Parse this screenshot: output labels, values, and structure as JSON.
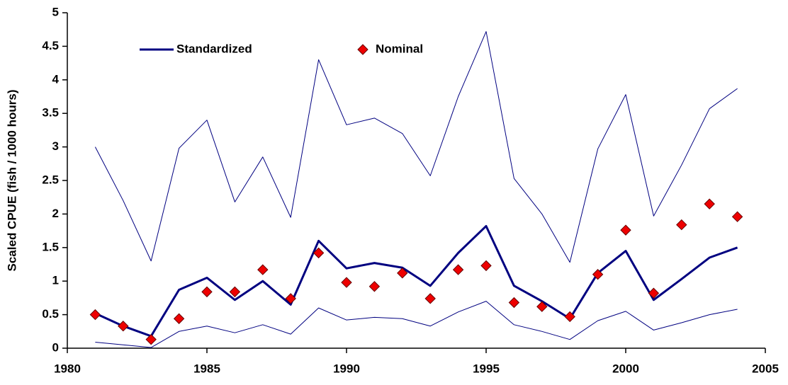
{
  "chart_data": {
    "type": "line",
    "y_label": "Scaled CPUE (fish / 1000 hours)",
    "x": [
      1981,
      1982,
      1983,
      1984,
      1985,
      1986,
      1987,
      1988,
      1989,
      1990,
      1991,
      1992,
      1993,
      1994,
      1995,
      1996,
      1997,
      1998,
      1999,
      2000,
      2001,
      2002,
      2003,
      2004
    ],
    "series": [
      {
        "name": "Standardized",
        "color": "#000080",
        "style": "line",
        "line_width": 3,
        "values": [
          0.52,
          0.33,
          0.18,
          0.87,
          1.05,
          0.72,
          1.0,
          0.65,
          1.6,
          1.19,
          1.27,
          1.2,
          0.93,
          1.42,
          1.82,
          0.93,
          0.7,
          0.44,
          1.12,
          1.45,
          0.72,
          1.03,
          1.35,
          1.5
        ]
      },
      {
        "color": "#000080",
        "style": "line",
        "line_width": 1,
        "values": [
          3.0,
          2.2,
          1.3,
          2.98,
          3.4,
          2.18,
          2.85,
          1.95,
          4.3,
          3.33,
          3.43,
          3.2,
          2.57,
          3.75,
          4.72,
          2.53,
          2.0,
          1.28,
          2.97,
          3.78,
          1.97,
          2.73,
          3.57,
          3.87
        ]
      },
      {
        "color": "#000080",
        "style": "line",
        "line_width": 1,
        "values": [
          0.09,
          0.05,
          0.01,
          0.25,
          0.33,
          0.23,
          0.35,
          0.21,
          0.6,
          0.42,
          0.46,
          0.44,
          0.33,
          0.54,
          0.7,
          0.35,
          0.25,
          0.13,
          0.41,
          0.55,
          0.27,
          0.38,
          0.5,
          0.58
        ]
      },
      {
        "name": "Nominal",
        "color": "#ee0000",
        "style": "diamond",
        "values": [
          0.5,
          0.33,
          0.13,
          0.44,
          0.84,
          0.84,
          1.17,
          0.74,
          1.42,
          0.98,
          0.92,
          1.12,
          0.74,
          1.17,
          1.23,
          0.68,
          0.62,
          0.47,
          1.1,
          1.76,
          0.82,
          1.84,
          2.15,
          1.96
        ]
      }
    ],
    "xlim": [
      1980,
      2005
    ],
    "xticks": [
      1980,
      1985,
      1990,
      1995,
      2000,
      2005
    ],
    "ylim": [
      0,
      5
    ],
    "yticks": [
      0,
      0.5,
      1,
      1.5,
      2,
      2.5,
      3,
      3.5,
      4,
      4.5,
      5
    ],
    "grid": false,
    "legend": "top"
  }
}
